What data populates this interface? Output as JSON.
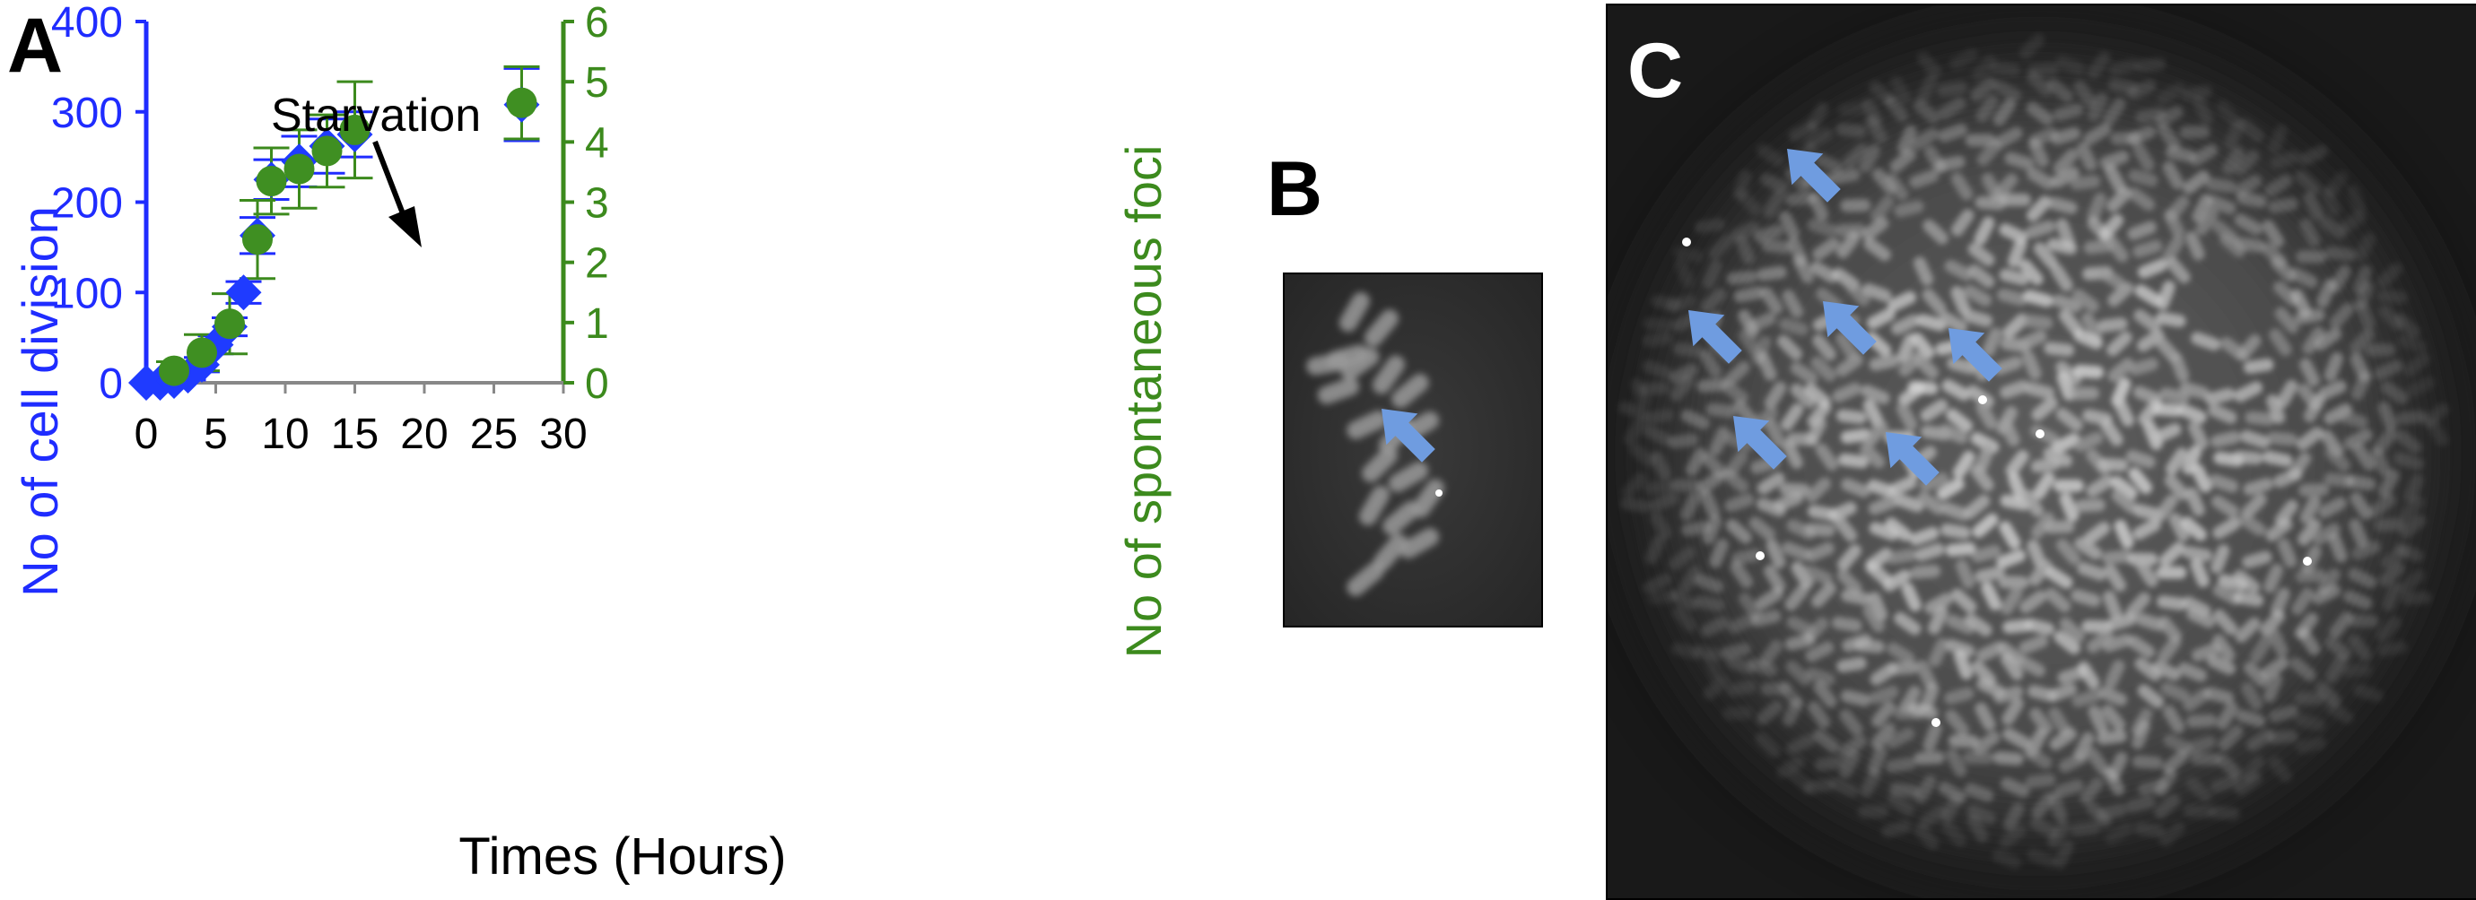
{
  "panels": {
    "a_label": "A",
    "b_label": "B",
    "c_label": "C"
  },
  "colors": {
    "left_axis": "#1f2cff",
    "right_axis": "#3c8a1d",
    "diamond": "#1f3bff",
    "circle": "#3f8f22",
    "arrow": "#6f9ce0",
    "black": "#000000"
  },
  "chart_data": {
    "type": "scatter",
    "xlabel": "Times (Hours)",
    "ylabel_left": "No of cell division",
    "ylabel_right": "No of  spontaneous foci",
    "xlim": [
      0,
      30
    ],
    "ylim_left": [
      0,
      400
    ],
    "ylim_right": [
      0,
      6
    ],
    "x_ticks": [
      "0",
      "5",
      "10",
      "15",
      "20",
      "25",
      "30"
    ],
    "y_left_ticks": [
      "0",
      "100",
      "200",
      "300",
      "400"
    ],
    "y_right_ticks": [
      "0",
      "1",
      "2",
      "3",
      "4",
      "5",
      "6"
    ],
    "annotation": {
      "text": "Starvation",
      "x": 8,
      "y_left": 265
    },
    "series": [
      {
        "axis": "left",
        "marker": "diamond",
        "points": [
          {
            "x": 0,
            "y": 0,
            "err": 0
          },
          {
            "x": 1,
            "y": 0,
            "err": 0
          },
          {
            "x": 2,
            "y": 2,
            "err": 0
          },
          {
            "x": 3,
            "y": 8,
            "err": 5
          },
          {
            "x": 4,
            "y": 20,
            "err": 8
          },
          {
            "x": 5,
            "y": 42,
            "err": 10
          },
          {
            "x": 6,
            "y": 62,
            "err": 10
          },
          {
            "x": 7,
            "y": 100,
            "err": 12
          },
          {
            "x": 8,
            "y": 163,
            "err": 20
          },
          {
            "x": 9,
            "y": 225,
            "err": 22
          },
          {
            "x": 11,
            "y": 245,
            "err": 28
          },
          {
            "x": 13,
            "y": 262,
            "err": 30
          },
          {
            "x": 15,
            "y": 275,
            "err": 25
          },
          {
            "x": 27,
            "y": 308,
            "err": 40
          }
        ]
      },
      {
        "axis": "right",
        "marker": "circle",
        "points": [
          {
            "x": 2,
            "y": 0.2,
            "err": 0.15
          },
          {
            "x": 4,
            "y": 0.5,
            "err": 0.3
          },
          {
            "x": 6,
            "y": 0.98,
            "err": 0.5
          },
          {
            "x": 8,
            "y": 2.38,
            "err": 0.65
          },
          {
            "x": 9,
            "y": 3.35,
            "err": 0.55
          },
          {
            "x": 11,
            "y": 3.55,
            "err": 0.65
          },
          {
            "x": 13,
            "y": 3.85,
            "err": 0.6
          },
          {
            "x": 15,
            "y": 4.2,
            "err": 0.8
          },
          {
            "x": 27,
            "y": 4.65,
            "err": 0.6
          }
        ]
      }
    ]
  },
  "micrographs": {
    "b_arrows": 1,
    "c_arrows": 6
  }
}
